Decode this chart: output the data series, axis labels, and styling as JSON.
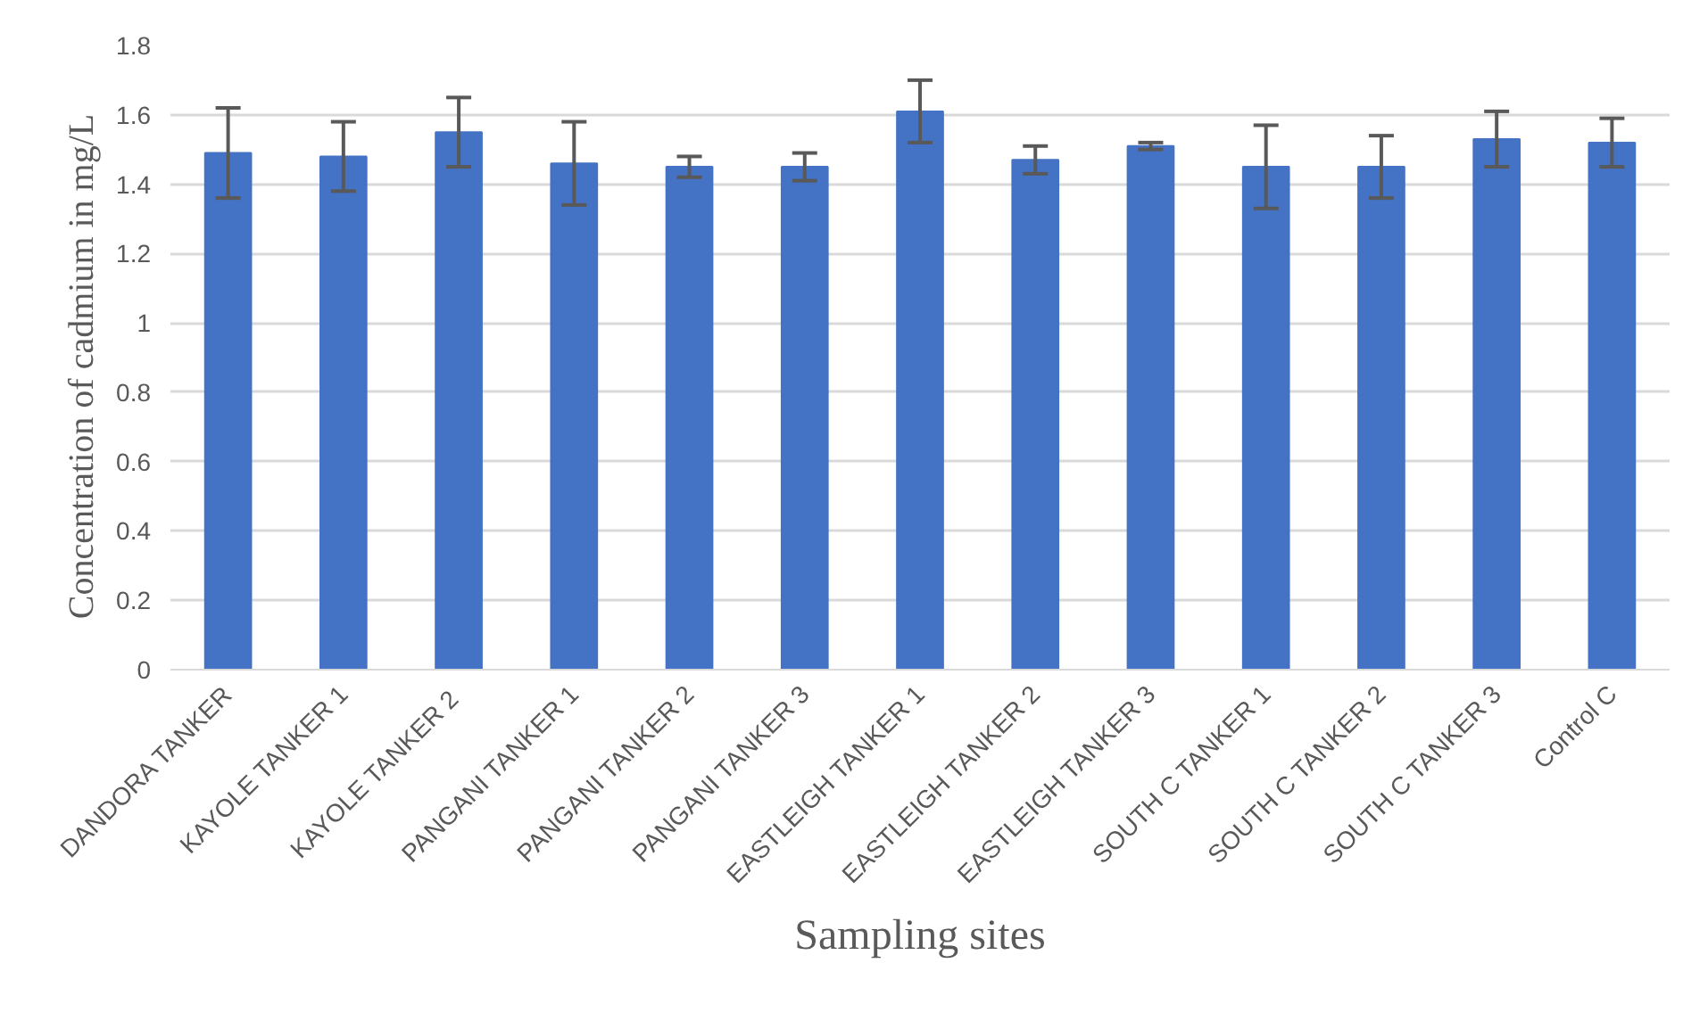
{
  "chart_data": {
    "type": "bar",
    "xlabel": "Sampling sites",
    "ylabel": "Concentration  of cadmium  in mg/L",
    "categories": [
      "DANDORA TANKER",
      "KAYOLE TANKER 1",
      "KAYOLE  TANKER 2",
      "PANGANI TANKER 1",
      "PANGANI TANKER 2",
      "PANGANI TANKER 3",
      "EASTLEIGH TANKER 1",
      "EASTLEIGH TANKER 2",
      "EASTLEIGH TANKER 3",
      "SOUTH C TANKER 1",
      "SOUTH C TANKER 2",
      "SOUTH C TANKER 3",
      "Control C"
    ],
    "values": [
      1.49,
      1.48,
      1.55,
      1.46,
      1.45,
      1.45,
      1.61,
      1.47,
      1.51,
      1.45,
      1.45,
      1.53,
      1.52
    ],
    "errors": [
      0.13,
      0.1,
      0.1,
      0.12,
      0.03,
      0.04,
      0.09,
      0.04,
      0.01,
      0.12,
      0.09,
      0.08,
      0.07
    ],
    "color": "#4472c4",
    "ylim": [
      0,
      1.8
    ],
    "yticks": [
      0,
      0.2,
      0.4,
      0.6,
      0.8,
      1,
      1.2,
      1.4,
      1.6,
      1.8
    ],
    "grid": "y"
  }
}
